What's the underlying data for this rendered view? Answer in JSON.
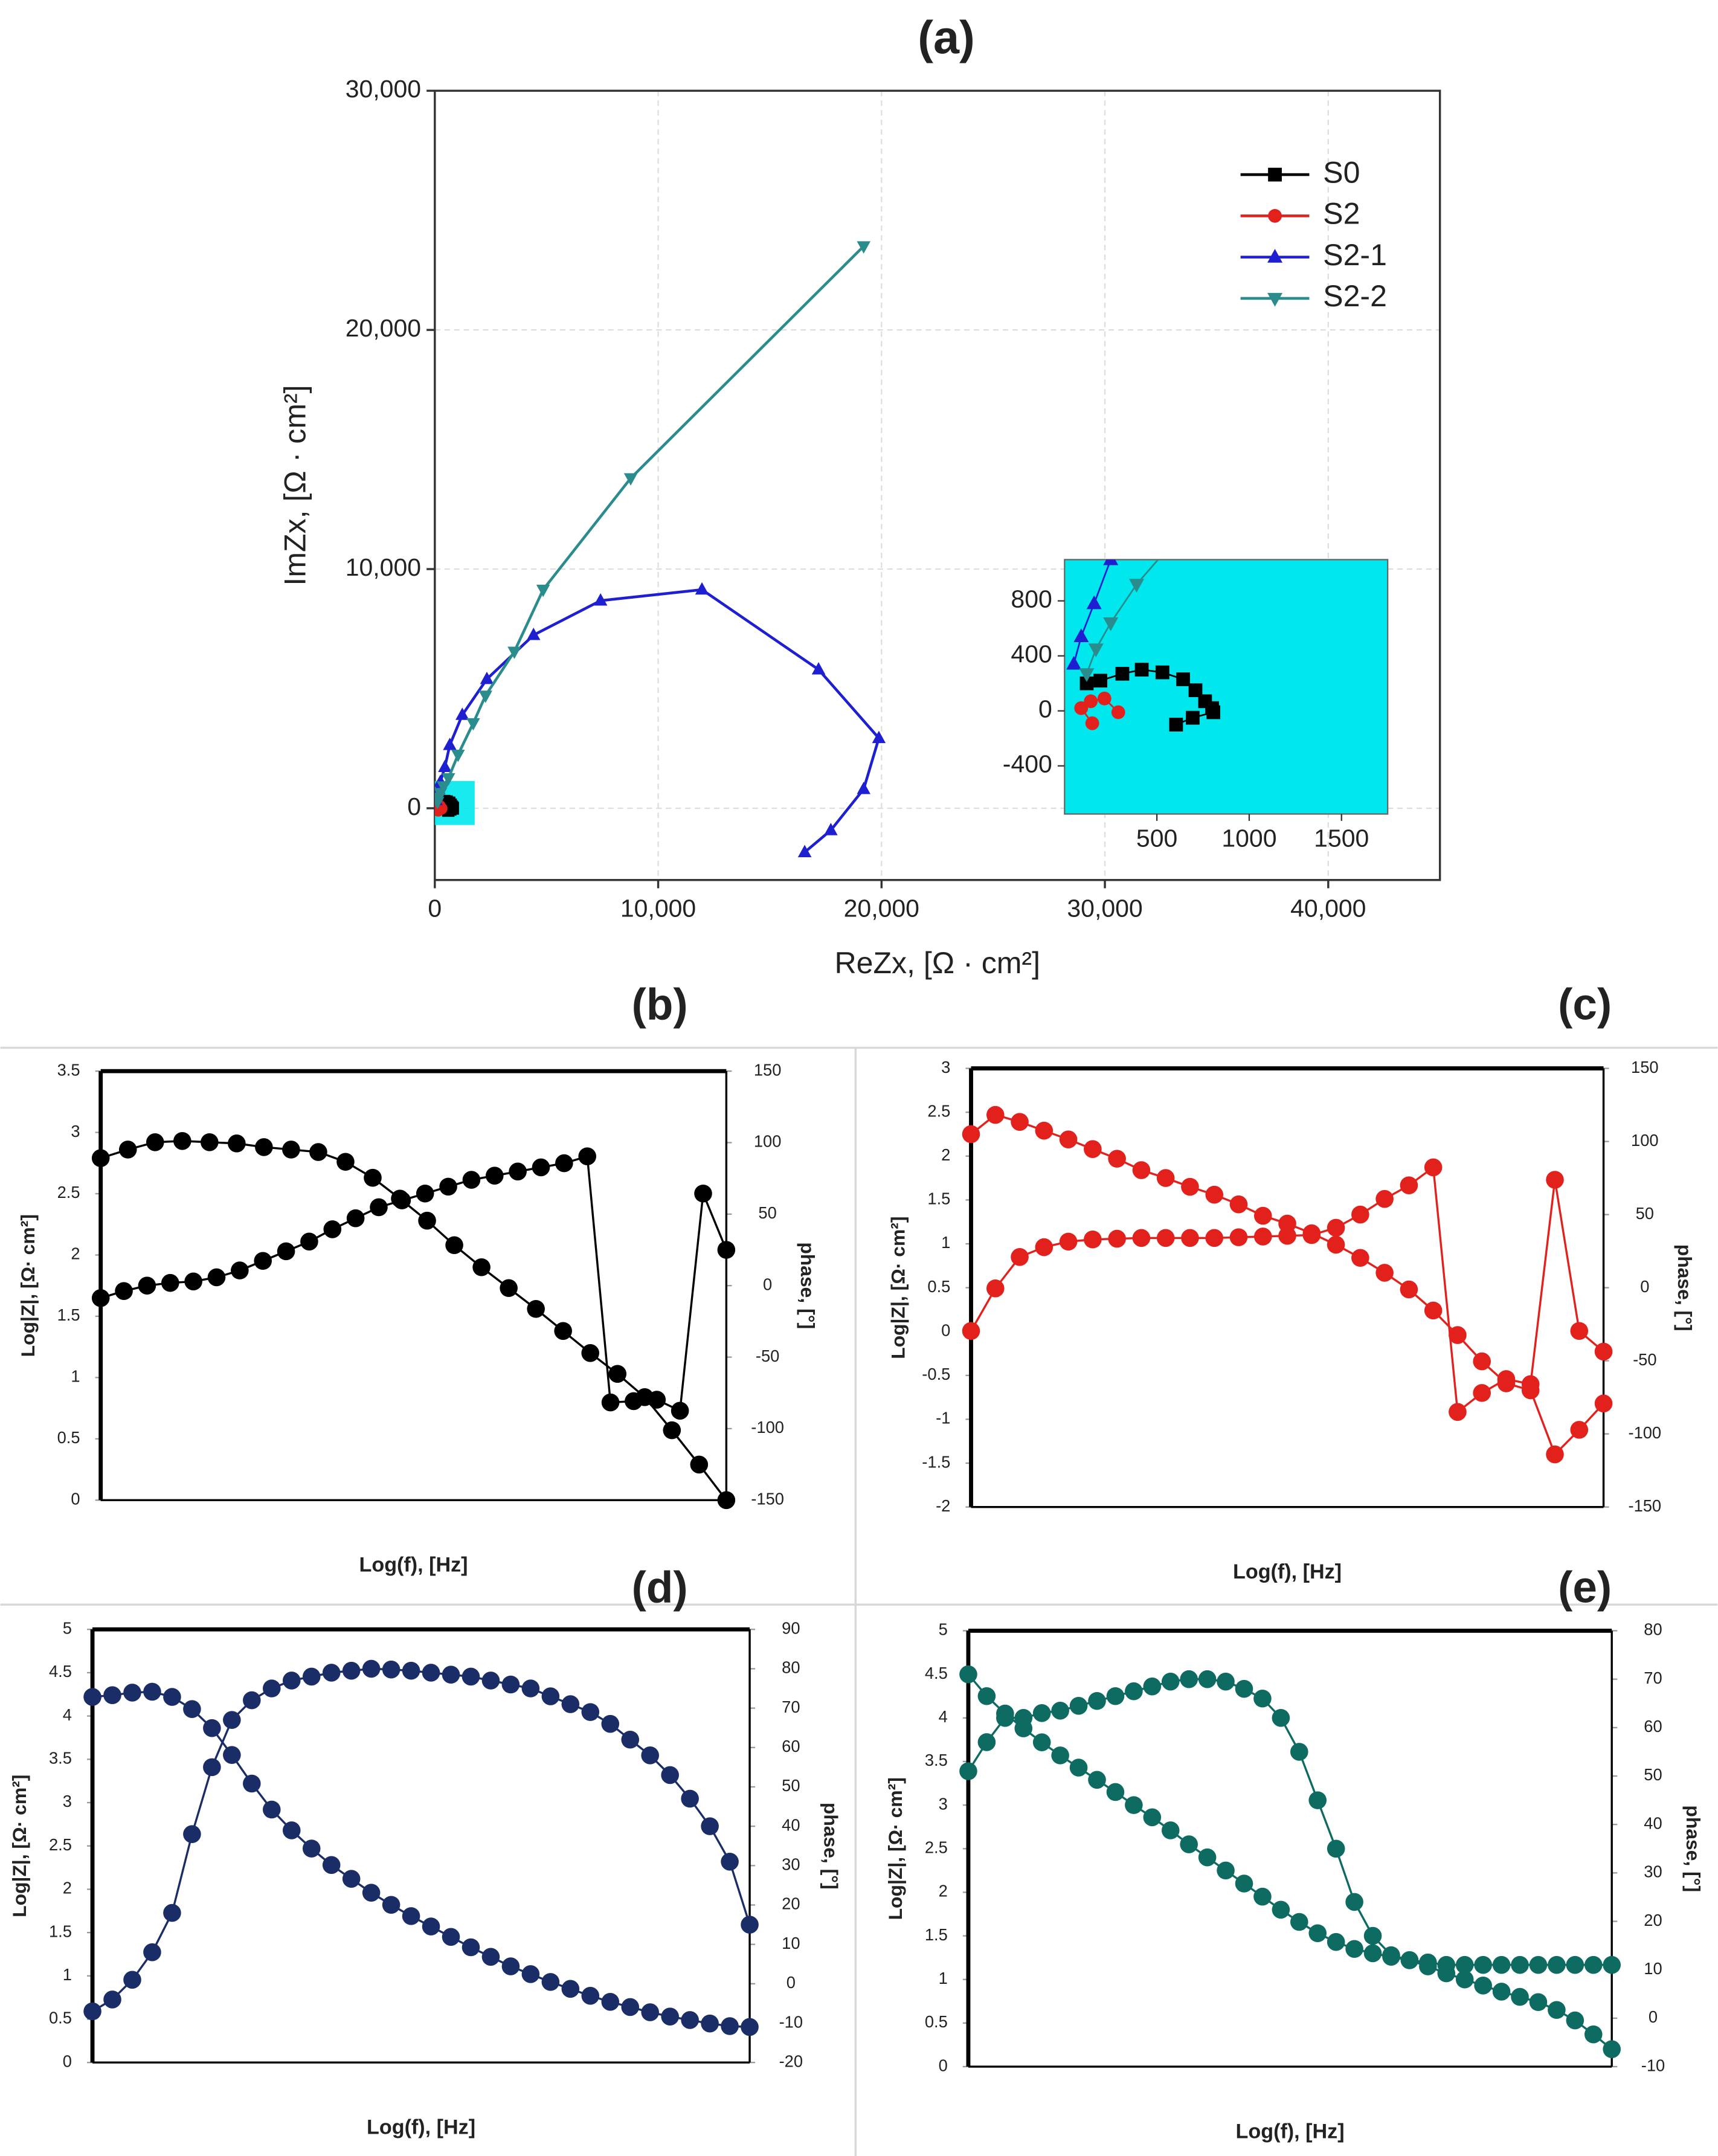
{
  "chart_data": [
    {
      "type": "line",
      "title": "(a)",
      "xlabel": "ReZx, [Ω · cm²]",
      "ylabel": "ImZx, [Ω · cm²]",
      "xlim": [
        0,
        45000
      ],
      "ylim": [
        -3000,
        30000
      ],
      "xticks": [
        0,
        {
          "value": 10000,
          "label": "10,000"
        },
        {
          "value": 20000,
          "label": "20,000"
        },
        {
          "value": 30000,
          "label": "30,000"
        },
        {
          "value": 40000,
          "label": "40,000"
        }
      ],
      "yticks": [
        0,
        {
          "value": 10000,
          "label": "10,000"
        },
        {
          "value": 20000,
          "label": "20,000"
        },
        {
          "value": 30000,
          "label": "30,000"
        }
      ],
      "grid": true,
      "legend": "upper right",
      "inset": {
        "xlim": [
          0,
          1750
        ],
        "ylim": [
          -750,
          1100
        ],
        "xticks": [
          500,
          1000,
          1500
        ],
        "yticks": [
          -400,
          0,
          400,
          800
        ],
        "background": "#00e8ee"
      },
      "series": [
        {
          "name": "S0",
          "color": "#000000",
          "marker": "square",
          "x": [
            120,
            194,
            313,
            418,
            530,
            642,
            709,
            761,
            799,
            806,
            694,
            604
          ],
          "values": [
            200,
            220,
            270,
            300,
            280,
            230,
            150,
            70,
            20,
            -10,
            -50,
            -100
          ]
        },
        {
          "name": "S2",
          "color": "#e3211c",
          "marker": "circle",
          "x": [
            150,
            90,
            142,
            216,
            291
          ],
          "values": [
            -90,
            20,
            70,
            90,
            -10
          ]
        },
        {
          "name": "S2-1",
          "color": "#1f1fd2",
          "marker": "triangle-up",
          "x": [
            50,
            90,
            160,
            250,
            450,
            670,
            1230,
            2330,
            4420,
            7420,
            11960,
            17180,
            19880,
            19200,
            17730,
            16560
          ],
          "values": [
            340,
            540,
            780,
            1100,
            1720,
            2640,
            3900,
            5400,
            7240,
            8680,
            9140,
            5800,
            2930,
            800,
            -920,
            -1840
          ]
        },
        {
          "name": "S2-2",
          "color": "#2a8c8c",
          "marker": "triangle-down",
          "x": [
            120,
            170,
            250,
            390,
            610,
            1040,
            1720,
            2270,
            3560,
            4850,
            8770,
            19200
          ],
          "values": [
            270,
            450,
            640,
            920,
            1260,
            2240,
            3560,
            4710,
            6550,
            9140,
            13800,
            23500
          ]
        }
      ]
    },
    {
      "type": "line",
      "title": "(b)",
      "xlabel": "Log(f), [Hz]",
      "ylabel": "Log|Z|, [Ω· cm²]",
      "y2label": "phase, [°]",
      "ylim": [
        0,
        3.5
      ],
      "yticks": [
        0,
        0.5,
        1,
        1.5,
        2,
        2.5,
        3,
        3.5
      ],
      "y2lim": [
        -150,
        150
      ],
      "y2ticks": [
        -150,
        -100,
        -50,
        0,
        50,
        100,
        150
      ],
      "series": [
        {
          "color": "#000000",
          "marker": "circle",
          "values": [
            2.79,
            2.86,
            2.92,
            2.93,
            2.92,
            2.91,
            2.88,
            2.86,
            2.84,
            2.76,
            2.63,
            2.46,
            2.28,
            2.08,
            1.9,
            1.73,
            1.56,
            1.38,
            1.2,
            1.03,
            0.84,
            0.57,
            0.29,
            0
          ]
        },
        {
          "color": "#000000",
          "marker": "circle",
          "axis": "y2",
          "values": [
            -8.7,
            -3.8,
            0,
            1.9,
            2.9,
            5.8,
            10.6,
            17.3,
            24,
            30.8,
            39.4,
            47.1,
            54.8,
            59.6,
            64.4,
            69.2,
            74,
            76.9,
            79.8,
            82.7,
            85.6,
            90.4,
            -81.7,
            -80.8,
            -79.8,
            -87.5,
            64.4,
            25
          ]
        }
      ]
    },
    {
      "type": "line",
      "title": "(c)",
      "xlabel": "Log(f), [Hz]",
      "ylabel": "Log|Z|, [Ω· cm²]",
      "y2label": "phase, [°]",
      "ylim": [
        -2,
        3
      ],
      "yticks": [
        -2,
        -1.5,
        -1,
        -0.5,
        0,
        0.5,
        1,
        1.5,
        2,
        2.5,
        3
      ],
      "y2lim": [
        -150,
        150
      ],
      "y2ticks": [
        -150,
        -100,
        -50,
        0,
        50,
        100,
        150
      ],
      "series": [
        {
          "color": "#e3211c",
          "marker": "circle",
          "values": [
            2.25,
            2.47,
            2.39,
            2.29,
            2.19,
            2.08,
            1.97,
            1.84,
            1.75,
            1.65,
            1.56,
            1.45,
            1.32,
            1.23,
            1.12,
            0.99,
            0.84,
            0.67,
            0.48,
            0.24,
            -0.04,
            -0.34,
            -0.59,
            -0.67,
            -1.4,
            -1.12,
            -0.82
          ]
        },
        {
          "color": "#e3211c",
          "marker": "circle",
          "axis": "y2",
          "values": [
            -29.6,
            -0.5,
            21,
            27.7,
            31.5,
            33,
            33.5,
            34,
            34,
            34,
            34,
            34.5,
            35,
            35.5,
            36,
            41,
            50,
            60.7,
            70,
            82.3,
            -85,
            -72,
            -62.5,
            -66,
            73.8,
            -29.6,
            -43.7
          ]
        }
      ]
    },
    {
      "type": "line",
      "title": "(d)",
      "xlabel": "Log(f), [Hz]",
      "ylabel": "Log|Z|, [Ω· cm²]",
      "y2label": "phase, [°]",
      "ylim": [
        0,
        5
      ],
      "yticks": [
        0,
        0.5,
        1,
        1.5,
        2,
        2.5,
        3,
        3.5,
        4,
        4.5,
        5
      ],
      "y2lim": [
        -20,
        90
      ],
      "y2ticks": [
        -20,
        -10,
        0,
        10,
        20,
        30,
        40,
        50,
        60,
        70,
        80,
        90
      ],
      "series": [
        {
          "color": "#1b2d66",
          "marker": "circle",
          "values": [
            4.22,
            4.24,
            4.27,
            4.28,
            4.22,
            4.08,
            3.86,
            3.55,
            3.22,
            2.92,
            2.68,
            2.47,
            2.28,
            2.12,
            1.96,
            1.82,
            1.69,
            1.57,
            1.45,
            1.33,
            1.22,
            1.11,
            1.02,
            0.93,
            0.85,
            0.77,
            0.7,
            0.64,
            0.58,
            0.53,
            0.49,
            0.45,
            0.42,
            0.41
          ]
        },
        {
          "color": "#1b2d66",
          "marker": "circle",
          "axis": "y2",
          "values": [
            -7,
            -4,
            1,
            8,
            18,
            38,
            55,
            67,
            72,
            75,
            77,
            78,
            79,
            79.5,
            80,
            79.8,
            79.5,
            79,
            78.5,
            78,
            77,
            76,
            75,
            73,
            71,
            69,
            66,
            62,
            58,
            53,
            47,
            40,
            31,
            15
          ]
        }
      ]
    },
    {
      "type": "line",
      "title": "(e)",
      "xlabel": "Log(f), [Hz]",
      "ylabel": "Log|Z|, [Ω· cm²]",
      "y2label": "phase, [°]",
      "ylim": [
        0,
        5
      ],
      "yticks": [
        0,
        0.5,
        1,
        1.5,
        2,
        2.5,
        3,
        3.5,
        4,
        4.5,
        5
      ],
      "y2lim": [
        -10,
        80
      ],
      "y2ticks": [
        -10,
        0,
        10,
        20,
        30,
        40,
        50,
        60,
        70,
        80
      ],
      "series": [
        {
          "color": "#0e6b62",
          "marker": "circle",
          "values": [
            4.5,
            4.25,
            4.05,
            3.88,
            3.72,
            3.57,
            3.43,
            3.29,
            3.15,
            3.0,
            2.86,
            2.71,
            2.55,
            2.4,
            2.25,
            2.1,
            1.95,
            1.8,
            1.66,
            1.53,
            1.43,
            1.35,
            1.3,
            1.26,
            1.22,
            1.15,
            1.07,
            1.0,
            0.93,
            0.86,
            0.8,
            0.74,
            0.65,
            0.53,
            0.37,
            0.2
          ]
        },
        {
          "color": "#0e6b62",
          "marker": "circle",
          "axis": "y2",
          "values": [
            51,
            57,
            62,
            62,
            63,
            63.5,
            64.5,
            65.5,
            66.5,
            67.5,
            68.5,
            69.5,
            70,
            70,
            69.5,
            68,
            66,
            62,
            55,
            45,
            35,
            24,
            17,
            13,
            12,
            11.5,
            11,
            11,
            11,
            11,
            11,
            11,
            11,
            11,
            11,
            11
          ]
        }
      ]
    }
  ]
}
